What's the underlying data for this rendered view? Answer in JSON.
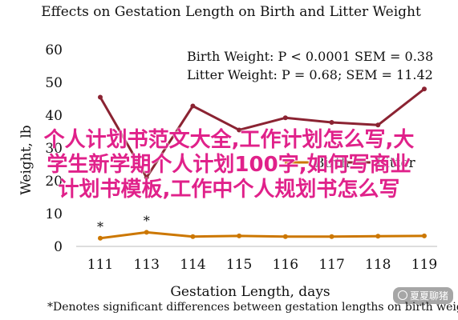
{
  "chart_data": {
    "type": "line",
    "title": "Effects on Gestation Length on Birth and Litter Weight",
    "xlabel": "Gestation Length, days",
    "ylabel": "Weight, lb",
    "categories": [
      "111",
      "113",
      "114",
      "115",
      "116",
      "117",
      "118",
      "119"
    ],
    "ylim": [
      0,
      60
    ],
    "yticks": [
      "0",
      "10",
      "20",
      "30",
      "40",
      "50",
      "60"
    ],
    "grid": false,
    "legend_position": "center-right",
    "series": [
      {
        "name": "Birth",
        "color": "#cc7700",
        "values": [
          2.5,
          4.3,
          3.0,
          3.2,
          3.0,
          3.0,
          3.1,
          3.2
        ]
      },
      {
        "name": "Litter",
        "color": "#8b2332",
        "values": [
          45.5,
          21.0,
          42.8,
          35.5,
          39.2,
          37.8,
          37.0,
          48.0
        ]
      }
    ],
    "significance_markers": [
      {
        "category": "111",
        "label": "*"
      },
      {
        "category": "113",
        "label": "*"
      }
    ],
    "annotations": [
      "Birth Weight: P < 0.0001 SEM = 0.38",
      "Litter Weight: P = 0.68; SEM = 11.42"
    ],
    "footnote": "*Denotes significant differences between gestation lengths on birth weights"
  },
  "overlay_text": [
    "个人计划书范文大全,工作计划怎么写,大",
    "学生新学期个人计划100字,如何写商业",
    "计划书模板,工作中个人规划书怎么写"
  ],
  "watermark": {
    "text": "夏夏聊猪"
  }
}
